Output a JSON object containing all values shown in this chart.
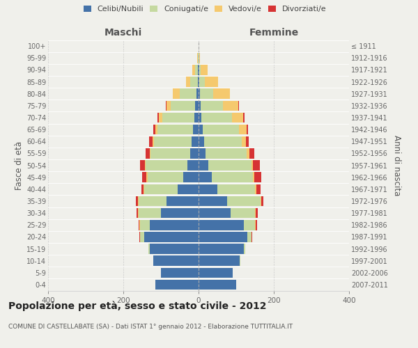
{
  "age_groups": [
    "0-4",
    "5-9",
    "10-14",
    "15-19",
    "20-24",
    "25-29",
    "30-34",
    "35-39",
    "40-44",
    "45-49",
    "50-54",
    "55-59",
    "60-64",
    "65-69",
    "70-74",
    "75-79",
    "80-84",
    "85-89",
    "90-94",
    "95-99",
    "100+"
  ],
  "birth_years": [
    "2007-2011",
    "2002-2006",
    "1997-2001",
    "1992-1996",
    "1987-1991",
    "1982-1986",
    "1977-1981",
    "1972-1976",
    "1967-1971",
    "1962-1966",
    "1957-1961",
    "1952-1956",
    "1947-1951",
    "1942-1946",
    "1937-1941",
    "1932-1936",
    "1927-1931",
    "1922-1926",
    "1917-1921",
    "1912-1916",
    "≤ 1911"
  ],
  "maschi": {
    "celibi": [
      115,
      100,
      120,
      130,
      145,
      130,
      100,
      85,
      55,
      40,
      30,
      22,
      18,
      15,
      12,
      10,
      5,
      2,
      1,
      0,
      0
    ],
    "coniugati": [
      0,
      0,
      1,
      3,
      10,
      25,
      60,
      75,
      90,
      95,
      110,
      105,
      100,
      95,
      85,
      65,
      45,
      20,
      8,
      2,
      0
    ],
    "vedovi": [
      0,
      0,
      0,
      0,
      1,
      2,
      1,
      1,
      2,
      3,
      3,
      3,
      5,
      5,
      8,
      10,
      18,
      12,
      8,
      1,
      0
    ],
    "divorziati": [
      0,
      0,
      0,
      0,
      1,
      2,
      4,
      5,
      5,
      12,
      12,
      10,
      8,
      5,
      5,
      2,
      0,
      0,
      0,
      0,
      0
    ]
  },
  "femmine": {
    "nubili": [
      100,
      90,
      110,
      120,
      130,
      120,
      85,
      75,
      50,
      35,
      25,
      18,
      14,
      12,
      8,
      5,
      3,
      2,
      1,
      0,
      0
    ],
    "coniugate": [
      0,
      0,
      1,
      4,
      10,
      30,
      65,
      90,
      100,
      110,
      115,
      110,
      100,
      95,
      80,
      60,
      35,
      15,
      5,
      1,
      0
    ],
    "vedove": [
      0,
      0,
      0,
      0,
      1,
      2,
      2,
      2,
      3,
      4,
      5,
      8,
      12,
      20,
      30,
      40,
      45,
      35,
      18,
      2,
      0
    ],
    "divorziate": [
      0,
      0,
      0,
      0,
      1,
      3,
      5,
      5,
      12,
      18,
      18,
      12,
      8,
      5,
      4,
      2,
      0,
      0,
      0,
      0,
      0
    ]
  },
  "colors": {
    "celibi_nubili": "#4472a8",
    "coniugati": "#c5d9a0",
    "vedovi": "#f5c96e",
    "divorziati": "#d63333"
  },
  "xlim": 400,
  "title": "Popolazione per età, sesso e stato civile - 2012",
  "subtitle": "COMUNE DI CASTELLABATE (SA) - Dati ISTAT 1° gennaio 2012 - Elaborazione TUTTITALIA.IT",
  "ylabel_left": "Fasce di età",
  "ylabel_right": "Anni di nascita",
  "xlabel_left": "Maschi",
  "xlabel_right": "Femmine",
  "bg_color": "#f0f0eb"
}
